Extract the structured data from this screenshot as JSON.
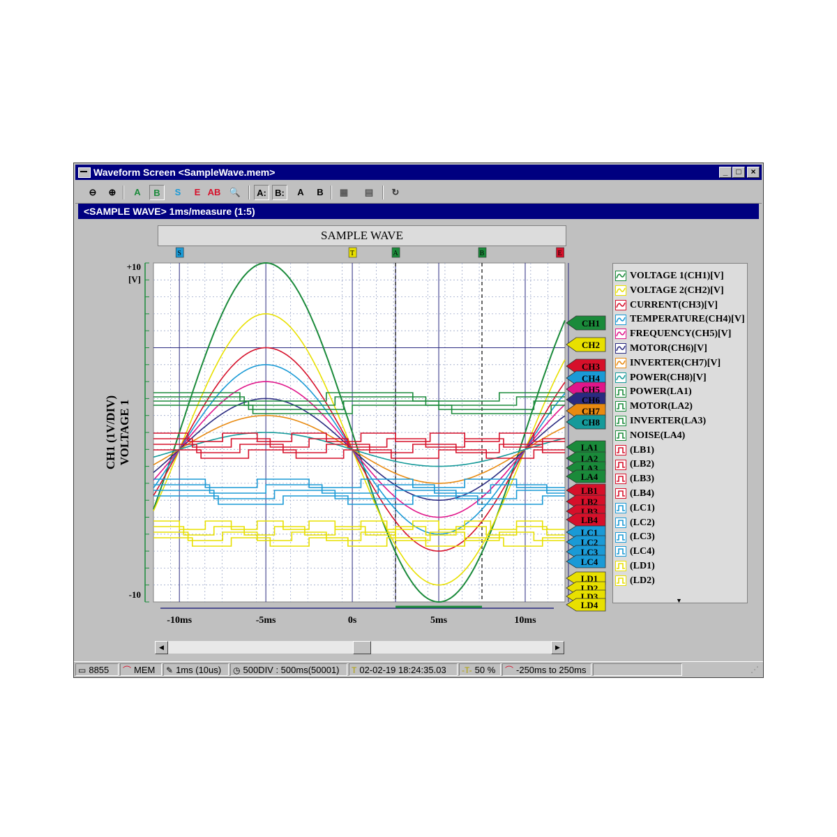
{
  "window": {
    "title": "Waveform Screen <SampleWave.mem>",
    "minimize": "_",
    "maximize": "□",
    "close": "×"
  },
  "toolbar": {
    "buttons": [
      {
        "name": "zoom-out-icon",
        "glyph": "⊖",
        "color": "#000000"
      },
      {
        "name": "zoom-in-icon",
        "glyph": "⊕",
        "color": "#000000"
      },
      {
        "name": "cursor-a-icon",
        "glyph": "A",
        "color": "#1a8a3a"
      },
      {
        "name": "cursor-b-icon",
        "glyph": "B",
        "color": "#1a8a3a"
      },
      {
        "name": "start-marker-icon",
        "glyph": "S",
        "color": "#1a9ad6"
      },
      {
        "name": "end-marker-icon",
        "glyph": "E",
        "color": "#d6102a"
      },
      {
        "name": "ab-search-icon",
        "glyph": "AB",
        "color": "#d6102a"
      },
      {
        "name": "search-icon",
        "glyph": "🔍",
        "color": "#000000"
      },
      {
        "name": "a-jump-icon",
        "glyph": "A:",
        "color": "#000000"
      },
      {
        "name": "b-jump-icon",
        "glyph": "B:",
        "color": "#000000"
      },
      {
        "name": "a-text-icon",
        "glyph": "A",
        "color": "#000000"
      },
      {
        "name": "b-text-icon",
        "glyph": "B",
        "color": "#000000"
      },
      {
        "name": "chart-settings-icon",
        "glyph": "▦",
        "color": "#555555"
      },
      {
        "name": "print-icon",
        "glyph": "▤",
        "color": "#555555"
      },
      {
        "name": "refresh-icon",
        "glyph": "↻",
        "color": "#333333"
      }
    ]
  },
  "subtitle": "<SAMPLE WAVE> 1ms/measure (1:5)",
  "chart_title": "SAMPLE WAVE",
  "markers": [
    {
      "label": "S",
      "t": -10,
      "color": "#1a9ad6"
    },
    {
      "label": "T",
      "t": 0,
      "color": "#e8e000"
    },
    {
      "label": "A",
      "t": 2.5,
      "color": "#1a8a3a"
    },
    {
      "label": "B",
      "t": 7.5,
      "color": "#1a8a3a"
    },
    {
      "label": "E",
      "t": 12,
      "color": "#d6102a"
    }
  ],
  "y_axis": {
    "top": "+10",
    "unit": "[V]",
    "bottom": "-10",
    "label_line1": "CH1 (1V/DIV)",
    "label_line2": "VOLTAGE 1"
  },
  "x_ticks": [
    "-10ms",
    "-5ms",
    "0s",
    "5ms",
    "10ms"
  ],
  "chart_data": {
    "type": "line",
    "xlim": [
      -11.5,
      12.3
    ],
    "ylim": [
      -10,
      10
    ],
    "x_ticks": [
      -10,
      -5,
      0,
      5,
      10
    ],
    "period_ms": 20,
    "series": [
      {
        "name": "VOLTAGE 1(CH1)[V]",
        "tag": "CH1",
        "color": "#1a8a3a",
        "amplitude": 10,
        "offset": 0
      },
      {
        "name": "VOLTAGE 2(CH2)[V]",
        "tag": "CH2",
        "color": "#e8e000",
        "amplitude": 8,
        "offset": -1
      },
      {
        "name": "CURRENT(CH3)[V]",
        "tag": "CH3",
        "color": "#d6102a",
        "amplitude": 6,
        "offset": -1
      },
      {
        "name": "TEMPERATURE(CH4)[V]",
        "tag": "CH4",
        "color": "#1a9ad6",
        "amplitude": 5,
        "offset": -1
      },
      {
        "name": "FREQUENCY(CH5)[V]",
        "tag": "CH5",
        "color": "#e0158a",
        "amplitude": 4,
        "offset": -1
      },
      {
        "name": "MOTOR(CH6)[V]",
        "tag": "CH6",
        "color": "#2a2a80",
        "amplitude": 3,
        "offset": -1
      },
      {
        "name": "INVERTER(CH7)[V]",
        "tag": "CH7",
        "color": "#e88a10",
        "amplitude": 2,
        "offset": -1
      },
      {
        "name": "POWER(CH8)[V]",
        "tag": "CH8",
        "color": "#159a9a",
        "amplitude": 1,
        "offset": -1
      }
    ],
    "logic": [
      {
        "name": "POWER(LA1)",
        "tag": "LA1",
        "color": "#1a8a3a"
      },
      {
        "name": "MOTOR(LA2)",
        "tag": "LA2",
        "color": "#1a8a3a"
      },
      {
        "name": "INVERTER(LA3)",
        "tag": "LA3",
        "color": "#1a8a3a"
      },
      {
        "name": "NOISE(LA4)",
        "tag": "LA4",
        "color": "#1a8a3a"
      },
      {
        "name": "(LB1)",
        "tag": "LB1",
        "color": "#d6102a"
      },
      {
        "name": "(LB2)",
        "tag": "LB2",
        "color": "#d6102a"
      },
      {
        "name": "(LB3)",
        "tag": "LB3",
        "color": "#d6102a"
      },
      {
        "name": "(LB4)",
        "tag": "LB4",
        "color": "#d6102a"
      },
      {
        "name": "(LC1)",
        "tag": "LC1",
        "color": "#1a9ad6"
      },
      {
        "name": "(LC2)",
        "tag": "LC2",
        "color": "#1a9ad6"
      },
      {
        "name": "(LC3)",
        "tag": "LC3",
        "color": "#1a9ad6"
      },
      {
        "name": "(LC4)",
        "tag": "LC4",
        "color": "#1a9ad6"
      },
      {
        "name": "(LD1)",
        "tag": "LD1",
        "color": "#e8e000"
      },
      {
        "name": "(LD2)",
        "tag": "LD2",
        "color": "#e8e000"
      },
      {
        "name": "",
        "tag": "LD3",
        "color": "#e8e000"
      },
      {
        "name": "",
        "tag": "LD4",
        "color": "#e8e000"
      }
    ]
  },
  "status": {
    "model": "8855",
    "mode": "MEM",
    "sampling": "1ms (10us)",
    "length": "500DIV : 500ms(50001)",
    "trigger_time": "02-02-19 18:24:35.03",
    "pre_trigger": "50 %",
    "range": "-250ms to 250ms"
  }
}
